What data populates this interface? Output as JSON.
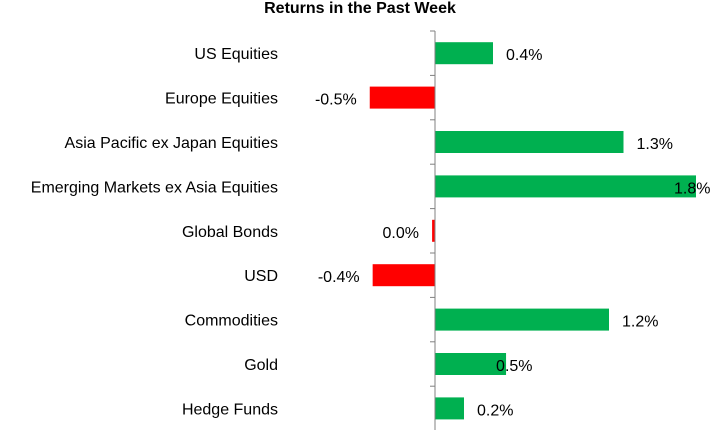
{
  "chart_data": {
    "type": "bar",
    "orientation": "horizontal",
    "title": "Returns in the Past Week",
    "xlabel": "",
    "ylabel": "",
    "xlim": [
      -0.6,
      2.0
    ],
    "grid": false,
    "categories": [
      "US Equities",
      "Europe Equities",
      "Asia Pacific ex Japan Equities",
      "Emerging Markets ex Asia Equities",
      "Global Bonds",
      "USD",
      "Commodities",
      "Gold",
      "Hedge Funds"
    ],
    "values": [
      0.4,
      -0.45,
      1.3,
      1.8,
      -0.02,
      -0.43,
      1.2,
      0.49,
      0.2
    ],
    "labels": [
      "0.4%",
      "-0.5%",
      "1.3%",
      "1.8%",
      "0.0%",
      "-0.4%",
      "1.2%",
      "0.5%",
      "0.2%"
    ],
    "colors": {
      "positive": "#00B050",
      "negative": "#FF0000",
      "axis": "#808080"
    }
  }
}
